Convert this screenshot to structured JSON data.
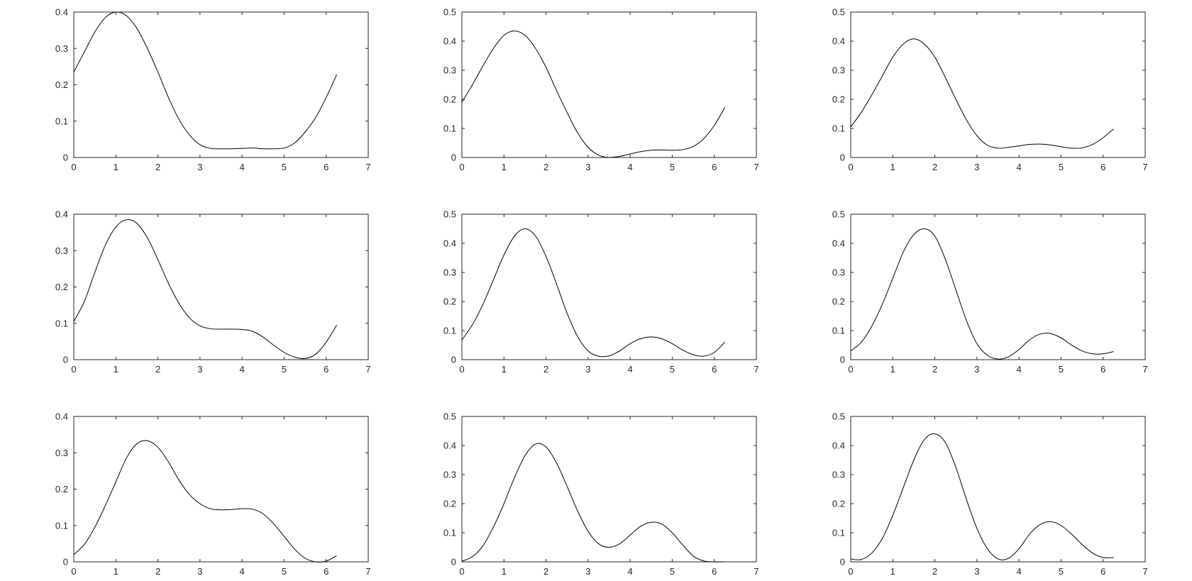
{
  "figure": {
    "line_color": "#000000",
    "axis_color": "#262626",
    "background": "#ffffff"
  },
  "chart_data": [
    {
      "type": "line",
      "title": "",
      "xlabel": "",
      "ylabel": "",
      "grid": false,
      "xlim": [
        0,
        7
      ],
      "ylim": [
        0,
        0.4
      ],
      "xticks": [
        "0",
        "1",
        "2",
        "3",
        "4",
        "5",
        "6",
        "7"
      ],
      "yticks": [
        "0",
        "0.1",
        "0.2",
        "0.3",
        "0.4"
      ],
      "series": [
        {
          "x": [
            0,
            0.25,
            0.5,
            0.75,
            1.0,
            1.25,
            1.5,
            1.75,
            2.0,
            2.25,
            2.5,
            2.75,
            3.0,
            3.25,
            3.5,
            3.75,
            4.0,
            4.25,
            4.5,
            4.75,
            5.0,
            5.25,
            5.5,
            5.75,
            6.0,
            6.25
          ],
          "values": [
            0.235,
            0.29,
            0.345,
            0.385,
            0.4,
            0.39,
            0.355,
            0.3,
            0.235,
            0.165,
            0.105,
            0.062,
            0.035,
            0.025,
            0.024,
            0.024,
            0.025,
            0.026,
            0.024,
            0.024,
            0.026,
            0.04,
            0.07,
            0.11,
            0.165,
            0.228
          ]
        }
      ]
    },
    {
      "type": "line",
      "title": "",
      "xlabel": "",
      "ylabel": "",
      "grid": false,
      "xlim": [
        0,
        7
      ],
      "ylim": [
        0,
        0.5
      ],
      "xticks": [
        "0",
        "1",
        "2",
        "3",
        "4",
        "5",
        "6",
        "7"
      ],
      "yticks": [
        "0",
        "0.1",
        "0.2",
        "0.3",
        "0.4",
        "0.5"
      ],
      "series": [
        {
          "x": [
            0,
            0.25,
            0.5,
            0.75,
            1.0,
            1.25,
            1.5,
            1.75,
            2.0,
            2.25,
            2.5,
            2.75,
            3.0,
            3.25,
            3.5,
            3.75,
            4.0,
            4.25,
            4.5,
            4.75,
            5.0,
            5.25,
            5.5,
            5.75,
            6.0,
            6.25
          ],
          "values": [
            0.19,
            0.25,
            0.315,
            0.375,
            0.42,
            0.435,
            0.42,
            0.375,
            0.31,
            0.23,
            0.155,
            0.085,
            0.035,
            0.008,
            0.0,
            0.004,
            0.012,
            0.02,
            0.025,
            0.026,
            0.025,
            0.027,
            0.038,
            0.065,
            0.11,
            0.172
          ]
        }
      ]
    },
    {
      "type": "line",
      "title": "",
      "xlabel": "",
      "ylabel": "",
      "grid": false,
      "xlim": [
        0,
        7
      ],
      "ylim": [
        0,
        0.5
      ],
      "xticks": [
        "0",
        "1",
        "2",
        "3",
        "4",
        "5",
        "6",
        "7"
      ],
      "yticks": [
        "0",
        "0.1",
        "0.2",
        "0.3",
        "0.4",
        "0.5"
      ],
      "series": [
        {
          "x": [
            0,
            0.25,
            0.5,
            0.75,
            1.0,
            1.25,
            1.5,
            1.75,
            2.0,
            2.25,
            2.5,
            2.75,
            3.0,
            3.25,
            3.5,
            3.75,
            4.0,
            4.25,
            4.5,
            4.75,
            5.0,
            5.25,
            5.5,
            5.75,
            6.0,
            6.25
          ],
          "values": [
            0.105,
            0.155,
            0.215,
            0.28,
            0.345,
            0.39,
            0.408,
            0.39,
            0.345,
            0.275,
            0.2,
            0.13,
            0.075,
            0.042,
            0.032,
            0.035,
            0.04,
            0.045,
            0.046,
            0.043,
            0.037,
            0.032,
            0.033,
            0.045,
            0.068,
            0.098
          ]
        }
      ]
    },
    {
      "type": "line",
      "title": "",
      "xlabel": "",
      "ylabel": "",
      "grid": false,
      "xlim": [
        0,
        7
      ],
      "ylim": [
        0,
        0.4
      ],
      "xticks": [
        "0",
        "1",
        "2",
        "3",
        "4",
        "5",
        "6",
        "7"
      ],
      "yticks": [
        "0",
        "0.1",
        "0.2",
        "0.3",
        "0.4"
      ],
      "series": [
        {
          "x": [
            0,
            0.25,
            0.5,
            0.75,
            1.0,
            1.25,
            1.5,
            1.75,
            2.0,
            2.25,
            2.5,
            2.75,
            3.0,
            3.25,
            3.5,
            3.75,
            4.0,
            4.25,
            4.5,
            4.75,
            5.0,
            5.25,
            5.5,
            5.75,
            6.0,
            6.25
          ],
          "values": [
            0.105,
            0.16,
            0.24,
            0.315,
            0.365,
            0.385,
            0.375,
            0.335,
            0.275,
            0.21,
            0.155,
            0.115,
            0.093,
            0.085,
            0.084,
            0.084,
            0.083,
            0.078,
            0.062,
            0.04,
            0.02,
            0.007,
            0.003,
            0.015,
            0.048,
            0.095
          ]
        }
      ]
    },
    {
      "type": "line",
      "title": "",
      "xlabel": "",
      "ylabel": "",
      "grid": false,
      "xlim": [
        0,
        7
      ],
      "ylim": [
        0,
        0.5
      ],
      "xticks": [
        "0",
        "1",
        "2",
        "3",
        "4",
        "5",
        "6",
        "7"
      ],
      "yticks": [
        "0",
        "0.1",
        "0.2",
        "0.3",
        "0.4",
        "0.5"
      ],
      "series": [
        {
          "x": [
            0,
            0.25,
            0.5,
            0.75,
            1.0,
            1.25,
            1.5,
            1.75,
            2.0,
            2.25,
            2.5,
            2.75,
            3.0,
            3.25,
            3.5,
            3.75,
            4.0,
            4.25,
            4.5,
            4.75,
            5.0,
            5.25,
            5.5,
            5.75,
            6.0,
            6.25
          ],
          "values": [
            0.068,
            0.12,
            0.19,
            0.275,
            0.36,
            0.425,
            0.45,
            0.425,
            0.355,
            0.26,
            0.16,
            0.08,
            0.03,
            0.012,
            0.013,
            0.03,
            0.055,
            0.072,
            0.078,
            0.072,
            0.055,
            0.033,
            0.017,
            0.012,
            0.025,
            0.06
          ]
        }
      ]
    },
    {
      "type": "line",
      "title": "",
      "xlabel": "",
      "ylabel": "",
      "grid": false,
      "xlim": [
        0,
        7
      ],
      "ylim": [
        0,
        0.5
      ],
      "xticks": [
        "0",
        "1",
        "2",
        "3",
        "4",
        "5",
        "6",
        "7"
      ],
      "yticks": [
        "0",
        "0.1",
        "0.2",
        "0.3",
        "0.4",
        "0.5"
      ],
      "series": [
        {
          "x": [
            0,
            0.25,
            0.5,
            0.75,
            1.0,
            1.25,
            1.5,
            1.75,
            2.0,
            2.25,
            2.5,
            2.75,
            3.0,
            3.25,
            3.5,
            3.75,
            4.0,
            4.25,
            4.5,
            4.75,
            5.0,
            5.25,
            5.5,
            5.75,
            6.0,
            6.25
          ],
          "values": [
            0.03,
            0.06,
            0.115,
            0.19,
            0.28,
            0.37,
            0.43,
            0.45,
            0.425,
            0.345,
            0.24,
            0.135,
            0.055,
            0.015,
            0.002,
            0.01,
            0.035,
            0.068,
            0.088,
            0.09,
            0.075,
            0.05,
            0.03,
            0.02,
            0.02,
            0.028
          ]
        }
      ]
    },
    {
      "type": "line",
      "title": "",
      "xlabel": "",
      "ylabel": "",
      "grid": false,
      "xlim": [
        0,
        7
      ],
      "ylim": [
        0,
        0.4
      ],
      "xticks": [
        "0",
        "1",
        "2",
        "3",
        "4",
        "5",
        "6",
        "7"
      ],
      "yticks": [
        "0",
        "0.1",
        "0.2",
        "0.3",
        "0.4"
      ],
      "series": [
        {
          "x": [
            0,
            0.25,
            0.5,
            0.75,
            1.0,
            1.25,
            1.5,
            1.75,
            2.0,
            2.25,
            2.5,
            2.75,
            3.0,
            3.25,
            3.5,
            3.75,
            4.0,
            4.25,
            4.5,
            4.75,
            5.0,
            5.25,
            5.5,
            5.75,
            6.0,
            6.25
          ],
          "values": [
            0.02,
            0.048,
            0.095,
            0.155,
            0.22,
            0.285,
            0.325,
            0.333,
            0.315,
            0.275,
            0.225,
            0.185,
            0.16,
            0.146,
            0.143,
            0.144,
            0.146,
            0.145,
            0.132,
            0.105,
            0.07,
            0.035,
            0.01,
            0.0,
            0.002,
            0.017
          ]
        }
      ]
    },
    {
      "type": "line",
      "title": "",
      "xlabel": "",
      "ylabel": "",
      "grid": false,
      "xlim": [
        0,
        7
      ],
      "ylim": [
        0,
        0.5
      ],
      "xticks": [
        "0",
        "1",
        "2",
        "3",
        "4",
        "5",
        "6",
        "7"
      ],
      "yticks": [
        "0",
        "0.1",
        "0.2",
        "0.3",
        "0.4",
        "0.5"
      ],
      "series": [
        {
          "x": [
            0,
            0.25,
            0.5,
            0.75,
            1.0,
            1.25,
            1.5,
            1.75,
            2.0,
            2.25,
            2.5,
            2.75,
            3.0,
            3.25,
            3.5,
            3.75,
            4.0,
            4.25,
            4.5,
            4.75,
            5.0,
            5.25,
            5.5,
            5.75,
            6.0,
            6.25
          ],
          "values": [
            0.002,
            0.018,
            0.055,
            0.12,
            0.2,
            0.29,
            0.365,
            0.405,
            0.395,
            0.34,
            0.26,
            0.175,
            0.105,
            0.062,
            0.05,
            0.062,
            0.092,
            0.122,
            0.136,
            0.13,
            0.1,
            0.058,
            0.02,
            0.003,
            0.0,
            0.0
          ]
        }
      ]
    },
    {
      "type": "line",
      "title": "",
      "xlabel": "",
      "ylabel": "",
      "grid": false,
      "xlim": [
        0,
        7
      ],
      "ylim": [
        0,
        0.5
      ],
      "xticks": [
        "0",
        "1",
        "2",
        "3",
        "4",
        "5",
        "6",
        "7"
      ],
      "yticks": [
        "0",
        "0.1",
        "0.2",
        "0.3",
        "0.4",
        "0.5"
      ],
      "series": [
        {
          "x": [
            0,
            0.25,
            0.5,
            0.75,
            1.0,
            1.25,
            1.5,
            1.75,
            2.0,
            2.25,
            2.5,
            2.75,
            3.0,
            3.25,
            3.5,
            3.75,
            4.0,
            4.25,
            4.5,
            4.75,
            5.0,
            5.25,
            5.5,
            5.75,
            6.0,
            6.25
          ],
          "values": [
            0.01,
            0.008,
            0.03,
            0.08,
            0.16,
            0.255,
            0.35,
            0.42,
            0.44,
            0.41,
            0.325,
            0.215,
            0.115,
            0.045,
            0.01,
            0.012,
            0.045,
            0.095,
            0.128,
            0.138,
            0.125,
            0.095,
            0.06,
            0.03,
            0.015,
            0.015
          ]
        }
      ]
    }
  ]
}
